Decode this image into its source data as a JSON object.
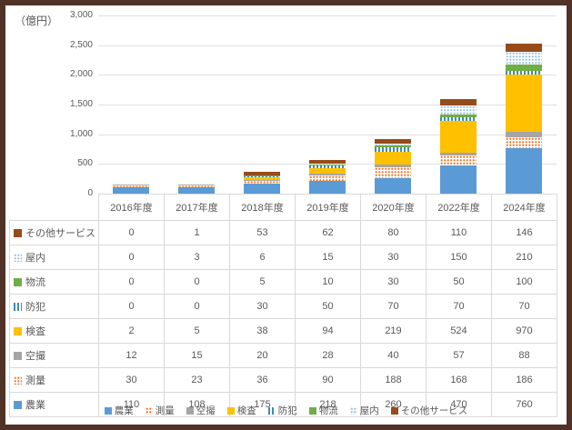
{
  "frame": {
    "border_color": "#503226"
  },
  "unit_label": "（億円）",
  "chart_data": {
    "type": "bar",
    "stacked": true,
    "title": "",
    "ylabel": "（億円）",
    "xlabel": "",
    "ylim": [
      0,
      3000
    ],
    "ytick_step": 500,
    "yticks": [
      "0",
      "500",
      "1,000",
      "1,500",
      "2,000",
      "2,500",
      "3,000"
    ],
    "grid": true,
    "legend_position": "bottom",
    "has_data_table": true,
    "categories": [
      "2016年度",
      "2017年度",
      "2018年度",
      "2019年度",
      "2020年度",
      "2022年度",
      "2024年度"
    ],
    "series": [
      {
        "id": "agriculture",
        "name": "農業",
        "fill": "solid",
        "color": "#5B9BD5",
        "values": [
          110,
          108,
          175,
          218,
          260,
          470,
          760
        ]
      },
      {
        "id": "surveying",
        "name": "測量",
        "fill": "dots",
        "color": "#ED7D31",
        "values": [
          30,
          23,
          36,
          90,
          188,
          168,
          186
        ]
      },
      {
        "id": "aerial-photography",
        "name": "空撮",
        "fill": "solid",
        "color": "#A5A5A5",
        "values": [
          12,
          15,
          20,
          28,
          40,
          57,
          88
        ]
      },
      {
        "id": "inspection",
        "name": "検査",
        "fill": "solid",
        "color": "#FFC000",
        "values": [
          2,
          5,
          38,
          94,
          219,
          524,
          970
        ]
      },
      {
        "id": "security",
        "name": "防犯",
        "fill": "vstripes",
        "color": "#3D8EB0",
        "values": [
          0,
          0,
          30,
          50,
          70,
          70,
          70
        ]
      },
      {
        "id": "logistics",
        "name": "物流",
        "fill": "solid",
        "color": "#70AD47",
        "values": [
          0,
          0,
          5,
          10,
          30,
          50,
          100
        ]
      },
      {
        "id": "indoor",
        "name": "屋内",
        "fill": "dots",
        "color": "#9DC3E6",
        "values": [
          0,
          3,
          6,
          15,
          30,
          150,
          210
        ]
      },
      {
        "id": "other-services",
        "name": "その他サービス",
        "fill": "solid",
        "color": "#964B1A",
        "values": [
          0,
          1,
          53,
          62,
          80,
          110,
          146
        ]
      }
    ]
  }
}
